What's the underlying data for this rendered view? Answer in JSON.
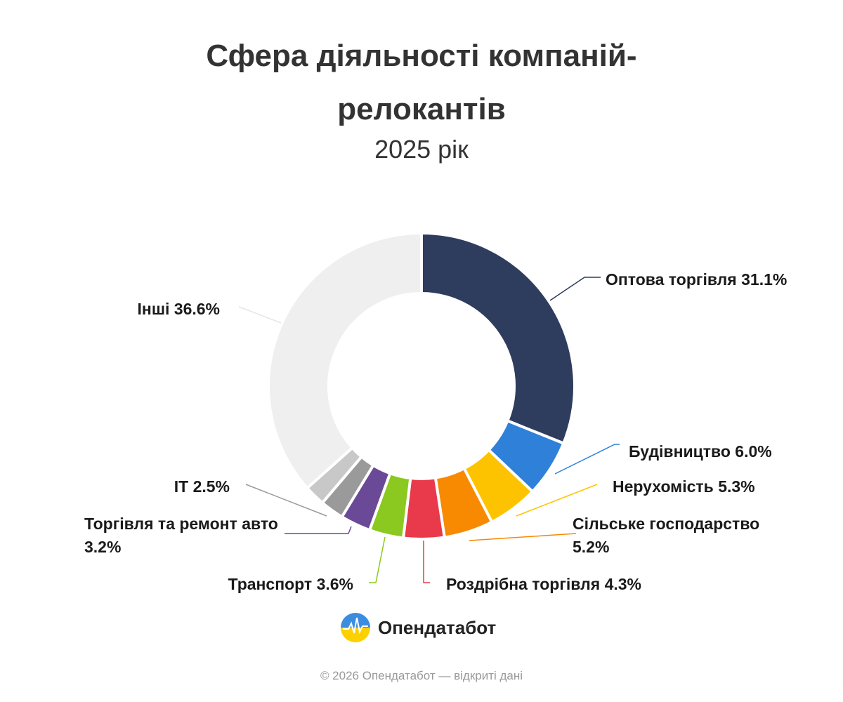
{
  "chart_data": {
    "type": "donut",
    "title": "Сфера діяльності компаній-релокантів",
    "subtitle": "2025 рік",
    "categories": [
      "Оптова торгівля",
      "Будівництво",
      "Нерухомість",
      "Сільське господарство",
      "Роздрібна торгівля",
      "Транспорт",
      "Торгівля та ремонт авто",
      "IT",
      null,
      "Інші"
    ],
    "values": [
      31.1,
      6.0,
      5.3,
      5.2,
      4.3,
      3.6,
      3.2,
      2.5,
      2.2,
      36.6
    ],
    "value_labels": [
      "31.1%",
      "6.0%",
      "5.3%",
      "5.2%",
      "4.3%",
      "3.6%",
      "3.2%",
      "2.5%",
      null,
      "36.6%"
    ],
    "colors": [
      "#2e3c5e",
      "#2f80d8",
      "#fdc300",
      "#f78a00",
      "#e83a4a",
      "#8bc820",
      "#6a4a96",
      "#9a9a9a",
      "#c8c8c8",
      "#efefef"
    ]
  },
  "brand": "Опендатабот",
  "footer": "© 2026 Опендатабот — відкриті дані"
}
